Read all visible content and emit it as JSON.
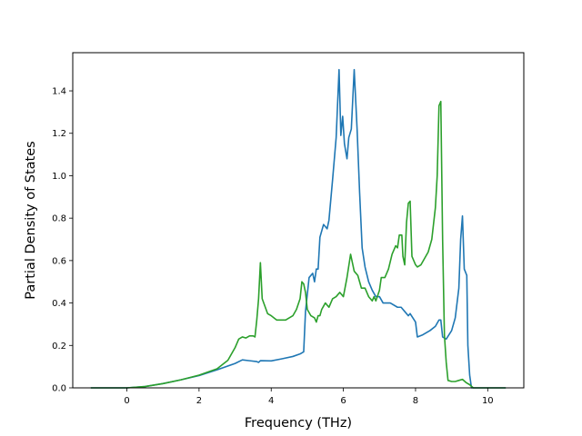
{
  "chart_data": {
    "type": "line",
    "title": "",
    "xlabel": "Frequency (THz)",
    "ylabel": "Partial Density of States",
    "xlim": [
      -1.5,
      11.0
    ],
    "ylim": [
      0.0,
      1.58
    ],
    "xticks": [
      0,
      2,
      4,
      6,
      8,
      10
    ],
    "yticks": [
      0.0,
      0.2,
      0.4,
      0.6,
      0.8,
      1.0,
      1.2,
      1.4
    ],
    "grid": false,
    "legend": "none",
    "series": [
      {
        "color": "#1f77b4",
        "points": [
          [
            -1.0,
            0.0
          ],
          [
            0.0,
            0.0
          ],
          [
            0.5,
            0.006
          ],
          [
            1.0,
            0.02
          ],
          [
            1.5,
            0.038
          ],
          [
            2.0,
            0.058
          ],
          [
            2.5,
            0.085
          ],
          [
            3.0,
            0.115
          ],
          [
            3.2,
            0.132
          ],
          [
            3.4,
            0.128
          ],
          [
            3.6,
            0.124
          ],
          [
            3.65,
            0.12
          ],
          [
            3.7,
            0.128
          ],
          [
            4.0,
            0.127
          ],
          [
            4.3,
            0.137
          ],
          [
            4.6,
            0.148
          ],
          [
            4.8,
            0.16
          ],
          [
            4.9,
            0.17
          ],
          [
            4.95,
            0.36
          ],
          [
            5.05,
            0.52
          ],
          [
            5.15,
            0.54
          ],
          [
            5.2,
            0.5
          ],
          [
            5.25,
            0.56
          ],
          [
            5.3,
            0.56
          ],
          [
            5.35,
            0.71
          ],
          [
            5.45,
            0.77
          ],
          [
            5.55,
            0.75
          ],
          [
            5.6,
            0.79
          ],
          [
            5.7,
            0.98
          ],
          [
            5.8,
            1.18
          ],
          [
            5.88,
            1.5
          ],
          [
            5.93,
            1.19
          ],
          [
            5.98,
            1.28
          ],
          [
            6.03,
            1.15
          ],
          [
            6.1,
            1.08
          ],
          [
            6.15,
            1.18
          ],
          [
            6.22,
            1.22
          ],
          [
            6.3,
            1.5
          ],
          [
            6.38,
            1.22
          ],
          [
            6.45,
            0.92
          ],
          [
            6.52,
            0.66
          ],
          [
            6.6,
            0.57
          ],
          [
            6.7,
            0.5
          ],
          [
            6.8,
            0.46
          ],
          [
            6.9,
            0.43
          ],
          [
            7.0,
            0.43
          ],
          [
            7.1,
            0.4
          ],
          [
            7.3,
            0.4
          ],
          [
            7.5,
            0.38
          ],
          [
            7.6,
            0.38
          ],
          [
            7.7,
            0.36
          ],
          [
            7.8,
            0.34
          ],
          [
            7.85,
            0.35
          ],
          [
            8.0,
            0.31
          ],
          [
            8.05,
            0.24
          ],
          [
            8.2,
            0.25
          ],
          [
            8.4,
            0.27
          ],
          [
            8.55,
            0.29
          ],
          [
            8.65,
            0.32
          ],
          [
            8.7,
            0.32
          ],
          [
            8.75,
            0.24
          ],
          [
            8.85,
            0.23
          ],
          [
            9.0,
            0.27
          ],
          [
            9.1,
            0.33
          ],
          [
            9.2,
            0.47
          ],
          [
            9.25,
            0.7
          ],
          [
            9.3,
            0.81
          ],
          [
            9.35,
            0.56
          ],
          [
            9.42,
            0.53
          ],
          [
            9.45,
            0.2
          ],
          [
            9.5,
            0.06
          ],
          [
            9.55,
            0.0
          ],
          [
            10.5,
            0.0
          ]
        ]
      },
      {
        "color": "#2ca02c",
        "points": [
          [
            -1.0,
            0.0
          ],
          [
            0.0,
            0.0
          ],
          [
            0.5,
            0.006
          ],
          [
            1.0,
            0.02
          ],
          [
            1.5,
            0.038
          ],
          [
            2.0,
            0.06
          ],
          [
            2.5,
            0.09
          ],
          [
            2.8,
            0.13
          ],
          [
            3.0,
            0.19
          ],
          [
            3.1,
            0.23
          ],
          [
            3.2,
            0.24
          ],
          [
            3.3,
            0.235
          ],
          [
            3.4,
            0.245
          ],
          [
            3.5,
            0.245
          ],
          [
            3.55,
            0.24
          ],
          [
            3.6,
            0.32
          ],
          [
            3.65,
            0.42
          ],
          [
            3.7,
            0.59
          ],
          [
            3.75,
            0.42
          ],
          [
            3.9,
            0.35
          ],
          [
            4.0,
            0.34
          ],
          [
            4.15,
            0.32
          ],
          [
            4.4,
            0.32
          ],
          [
            4.6,
            0.34
          ],
          [
            4.7,
            0.37
          ],
          [
            4.8,
            0.42
          ],
          [
            4.85,
            0.5
          ],
          [
            4.9,
            0.49
          ],
          [
            4.95,
            0.45
          ],
          [
            5.0,
            0.37
          ],
          [
            5.1,
            0.34
          ],
          [
            5.2,
            0.33
          ],
          [
            5.25,
            0.31
          ],
          [
            5.3,
            0.34
          ],
          [
            5.35,
            0.34
          ],
          [
            5.4,
            0.37
          ],
          [
            5.5,
            0.4
          ],
          [
            5.6,
            0.38
          ],
          [
            5.7,
            0.42
          ],
          [
            5.8,
            0.43
          ],
          [
            5.9,
            0.45
          ],
          [
            6.0,
            0.43
          ],
          [
            6.1,
            0.52
          ],
          [
            6.2,
            0.63
          ],
          [
            6.3,
            0.55
          ],
          [
            6.4,
            0.53
          ],
          [
            6.5,
            0.47
          ],
          [
            6.6,
            0.47
          ],
          [
            6.7,
            0.43
          ],
          [
            6.8,
            0.41
          ],
          [
            6.85,
            0.43
          ],
          [
            6.9,
            0.41
          ],
          [
            7.0,
            0.46
          ],
          [
            7.05,
            0.52
          ],
          [
            7.15,
            0.52
          ],
          [
            7.25,
            0.56
          ],
          [
            7.35,
            0.63
          ],
          [
            7.45,
            0.67
          ],
          [
            7.5,
            0.66
          ],
          [
            7.55,
            0.72
          ],
          [
            7.62,
            0.72
          ],
          [
            7.65,
            0.62
          ],
          [
            7.7,
            0.58
          ],
          [
            7.75,
            0.78
          ],
          [
            7.8,
            0.87
          ],
          [
            7.85,
            0.88
          ],
          [
            7.9,
            0.62
          ],
          [
            8.0,
            0.58
          ],
          [
            8.05,
            0.57
          ],
          [
            8.15,
            0.58
          ],
          [
            8.25,
            0.61
          ],
          [
            8.35,
            0.64
          ],
          [
            8.45,
            0.7
          ],
          [
            8.55,
            0.85
          ],
          [
            8.6,
            1.0
          ],
          [
            8.65,
            1.33
          ],
          [
            8.7,
            1.35
          ],
          [
            8.75,
            0.7
          ],
          [
            8.8,
            0.25
          ],
          [
            8.85,
            0.12
          ],
          [
            8.9,
            0.035
          ],
          [
            9.0,
            0.03
          ],
          [
            9.1,
            0.03
          ],
          [
            9.2,
            0.035
          ],
          [
            9.3,
            0.04
          ],
          [
            9.4,
            0.025
          ],
          [
            9.5,
            0.015
          ],
          [
            9.6,
            0.0
          ],
          [
            10.5,
            0.0
          ]
        ]
      }
    ]
  }
}
